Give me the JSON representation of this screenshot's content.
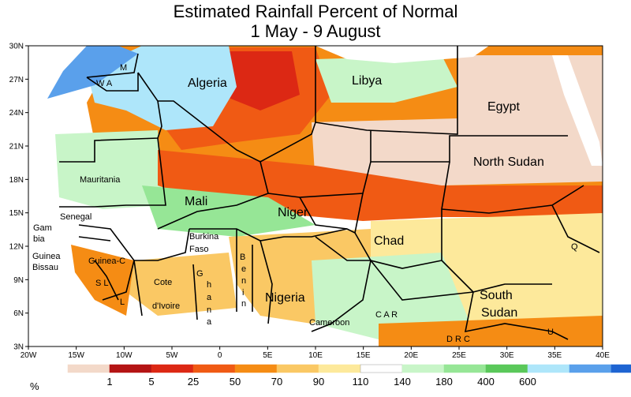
{
  "title": {
    "line1": "Estimated Rainfall Percent of Normal",
    "line2": "1 May - 9 August"
  },
  "axes": {
    "lat_labels": [
      "30N",
      "27N",
      "24N",
      "21N",
      "18N",
      "15N",
      "12N",
      "9N",
      "6N",
      "3N"
    ],
    "lon_labels": [
      "20W",
      "15W",
      "10W",
      "5W",
      "0",
      "5E",
      "10E",
      "15E",
      "20E",
      "25E",
      "30E",
      "35E",
      "40E"
    ]
  },
  "countries": [
    {
      "id": "algeria",
      "label": "Algeria",
      "size": "large"
    },
    {
      "id": "libya",
      "label": "Libya",
      "size": "large"
    },
    {
      "id": "egypt",
      "label": "Egypt",
      "size": "large"
    },
    {
      "id": "north-sudan",
      "label": "North Sudan",
      "size": "large"
    },
    {
      "id": "mali",
      "label": "Mali",
      "size": "large"
    },
    {
      "id": "niger",
      "label": "Niger",
      "size": "large"
    },
    {
      "id": "chad",
      "label": "Chad",
      "size": "large"
    },
    {
      "id": "nigeria",
      "label": "Nigeria",
      "size": "large"
    },
    {
      "id": "south-sudan-1",
      "label": "South",
      "size": "large"
    },
    {
      "id": "south-sudan-2",
      "label": "Sudan",
      "size": "large"
    },
    {
      "id": "mauritania",
      "label": "Mauritania",
      "size": "small"
    },
    {
      "id": "senegal",
      "label": "Senegal",
      "size": "small"
    },
    {
      "id": "gambia-1",
      "label": "Gam",
      "size": "small"
    },
    {
      "id": "gambia-2",
      "label": "bia",
      "size": "small"
    },
    {
      "id": "guinea",
      "label": "Guinea",
      "size": "small"
    },
    {
      "id": "bissau",
      "label": "Bissau",
      "size": "small"
    },
    {
      "id": "guinea-c",
      "label": "Guinea-C",
      "size": "small"
    },
    {
      "id": "sl",
      "label": "S L",
      "size": "small"
    },
    {
      "id": "liberia",
      "label": "L",
      "size": "small"
    },
    {
      "id": "cote",
      "label": "Cote",
      "size": "small"
    },
    {
      "id": "divoire",
      "label": "d'Ivoire",
      "size": "small"
    },
    {
      "id": "burkina-1",
      "label": "Burkina",
      "size": "small"
    },
    {
      "id": "burkina-2",
      "label": "Faso",
      "size": "small"
    },
    {
      "id": "ghana-g",
      "label": "G",
      "size": "small"
    },
    {
      "id": "ghana-h",
      "label": "h",
      "size": "small"
    },
    {
      "id": "ghana-a",
      "label": "a",
      "size": "small"
    },
    {
      "id": "ghana-n",
      "label": "n",
      "size": "small"
    },
    {
      "id": "ghana-a2",
      "label": "a",
      "size": "small"
    },
    {
      "id": "benin-b",
      "label": "B",
      "size": "small"
    },
    {
      "id": "benin-e",
      "label": "e",
      "size": "small"
    },
    {
      "id": "benin-n",
      "label": "n",
      "size": "small"
    },
    {
      "id": "benin-i",
      "label": "i",
      "size": "small"
    },
    {
      "id": "benin-n2",
      "label": "n",
      "size": "small"
    },
    {
      "id": "cameroon",
      "label": "Cameroon",
      "size": "small"
    },
    {
      "id": "car",
      "label": "C A R",
      "size": "small"
    },
    {
      "id": "drc",
      "label": "D R C",
      "size": "small"
    },
    {
      "id": "wa",
      "label": "W A",
      "size": "small"
    },
    {
      "id": "morocco",
      "label": "M",
      "size": "small"
    },
    {
      "id": "ug",
      "label": "U",
      "size": "small"
    },
    {
      "id": "q",
      "label": "Q",
      "size": "small"
    }
  ],
  "legend": {
    "unit": "%",
    "colors": [
      "#f3d9c9",
      "#b41414",
      "#dc2814",
      "#f05a14",
      "#f58c14",
      "#fac864",
      "#fde99b",
      "#ffffff",
      "#c8f5c8",
      "#96e696",
      "#5ac85a",
      "#aee6fa",
      "#5aa0eb",
      "#1e64d2"
    ],
    "labels": [
      "1",
      "5",
      "25",
      "50",
      "70",
      "90",
      "110",
      "140",
      "180",
      "400",
      "600"
    ]
  }
}
